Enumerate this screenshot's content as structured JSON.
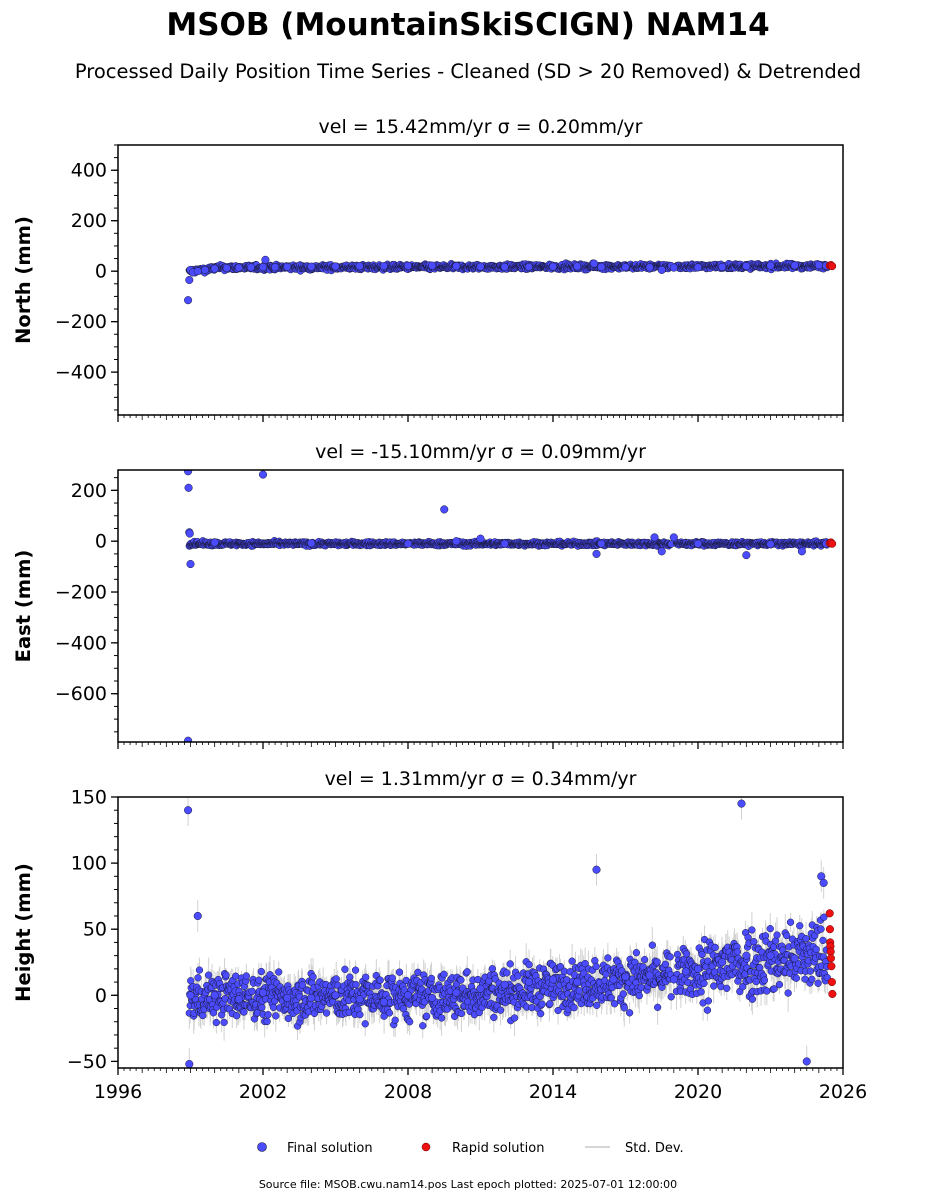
{
  "title": "MSOB (MountainSkiSCIGN) NAM14",
  "subtitle": "Processed Daily Position Time Series - Cleaned (SD > 20 Removed) & Detrended",
  "legend": {
    "final": "Final solution",
    "rapid": "Rapid solution",
    "std": "Std. Dev."
  },
  "footer": "Source file: MSOB.cwu.nam14.pos  Last epoch plotted: 2025-07-01 12:00:00",
  "colors": {
    "final": "#4b4bff",
    "final_edge": "#1a1a3a",
    "rapid": "#ee1111",
    "std": "#9a9a9a",
    "axis": "#000000"
  },
  "chart_data": [
    {
      "type": "scatter",
      "panel": "north",
      "title": "vel = 15.42mm/yr   σ = 0.20mm/yr",
      "ylabel": "North (mm)",
      "xlim": [
        1996,
        2026
      ],
      "ylim": [
        -570,
        500
      ],
      "yticks": [
        400,
        200,
        0,
        -200,
        -400
      ],
      "ytick_labels": [
        "400",
        "200",
        "0",
        "−200",
        "−400"
      ],
      "xticks": [
        1996,
        2002,
        2008,
        2014,
        2020,
        2026
      ],
      "series": [
        {
          "name": "Final solution",
          "x": [
            1998.9,
            1998.95,
            1999.0,
            1999.1,
            1999.3,
            1999.6,
            2000.0,
            2000.5,
            2001.0,
            2001.5,
            2002.0,
            2002.1,
            2002.5,
            2003.0,
            2004.0,
            2005.0,
            2006.0,
            2007.0,
            2008.0,
            2009.0,
            2010.0,
            2011.0,
            2012.0,
            2013.0,
            2014.0,
            2015.0,
            2015.7,
            2016.0,
            2017.0,
            2018.0,
            2018.5,
            2019.0,
            2020.0,
            2021.0,
            2022.0,
            2023.0,
            2024.0,
            2025.0,
            2025.3
          ],
          "y": [
            -115,
            -35,
            5,
            -5,
            0,
            5,
            10,
            12,
            14,
            15,
            16,
            45,
            16,
            17,
            18,
            19,
            20,
            20,
            21,
            22,
            20,
            18,
            17,
            17,
            18,
            19,
            30,
            17,
            16,
            15,
            5,
            14,
            15,
            17,
            20,
            22,
            23,
            24,
            22
          ]
        },
        {
          "name": "Rapid solution",
          "x": [
            2025.45,
            2025.5,
            2025.55
          ],
          "y": [
            22,
            24,
            20
          ]
        }
      ]
    },
    {
      "type": "scatter",
      "panel": "east",
      "title": "vel = -15.10mm/yr   σ = 0.09mm/yr",
      "ylabel": "East (mm)",
      "xlim": [
        1996,
        2026
      ],
      "ylim": [
        -790,
        280
      ],
      "yticks": [
        200,
        0,
        -200,
        -400,
        -600
      ],
      "ytick_labels": [
        "200",
        "0",
        "−200",
        "−400",
        "−600"
      ],
      "xticks": [
        1996,
        2002,
        2008,
        2014,
        2020,
        2026
      ],
      "series": [
        {
          "name": "Final solution",
          "x": [
            1998.9,
            1998.92,
            1998.95,
            1998.97,
            1999.0,
            1998.9,
            2002.0,
            2009.5,
            2010.0,
            2011.0,
            2015.8,
            2018.2,
            2018.5,
            2019.0,
            2022.0,
            2024.3,
            2000.0,
            2004.0,
            2008.0,
            2012.0,
            2016.0,
            2020.0,
            2023.0,
            2025.3
          ],
          "y": [
            275,
            210,
            35,
            30,
            -90,
            -785,
            262,
            125,
            0,
            10,
            -50,
            15,
            -40,
            15,
            -55,
            -40,
            -5,
            -8,
            -10,
            -10,
            -10,
            -10,
            -12,
            -10
          ]
        },
        {
          "name": "Rapid solution",
          "x": [
            2025.45,
            2025.5,
            2025.55
          ],
          "y": [
            -8,
            -5,
            -10
          ]
        }
      ]
    },
    {
      "type": "scatter",
      "panel": "height",
      "title": "vel = 1.31mm/yr   σ = 0.34mm/yr",
      "ylabel": "Height (mm)",
      "xlim": [
        1996,
        2026
      ],
      "ylim": [
        -55,
        150
      ],
      "yticks": [
        150,
        100,
        50,
        0,
        -50
      ],
      "ytick_labels": [
        "150",
        "100",
        "50",
        "0",
        "−50"
      ],
      "xticks": [
        1996,
        2002,
        2008,
        2014,
        2020,
        2026
      ],
      "xtick_labels": [
        "1996",
        "2002",
        "2008",
        "2014",
        "2020",
        "2026"
      ],
      "series": [
        {
          "name": "Final solution",
          "x": [
            1998.9,
            1998.95,
            1999.3,
            1999.0,
            2000.0,
            2001.0,
            2002.0,
            2003.0,
            2004.0,
            2005.0,
            2006.0,
            2007.0,
            2008.0,
            2009.0,
            2010.0,
            2011.0,
            2012.0,
            2013.0,
            2014.0,
            2015.0,
            2015.8,
            2016.5,
            2017.0,
            2018.0,
            2019.0,
            2019.5,
            2020.0,
            2021.0,
            2021.8,
            2022.0,
            2023.0,
            2024.0,
            2024.5,
            2025.1,
            2025.2
          ],
          "y": [
            140,
            -52,
            60,
            0,
            0,
            -3,
            2,
            -2,
            -2,
            0,
            -3,
            -5,
            0,
            -2,
            2,
            5,
            8,
            10,
            12,
            10,
            95,
            12,
            14,
            15,
            12,
            18,
            20,
            25,
            145,
            30,
            30,
            28,
            -50,
            90,
            85
          ]
        },
        {
          "name": "Rapid solution",
          "x": [
            2025.45,
            2025.46,
            2025.47,
            2025.48,
            2025.49,
            2025.5,
            2025.52,
            2025.54,
            2025.56
          ],
          "y": [
            62,
            50,
            40,
            37,
            33,
            28,
            22,
            10,
            1
          ]
        }
      ]
    }
  ]
}
